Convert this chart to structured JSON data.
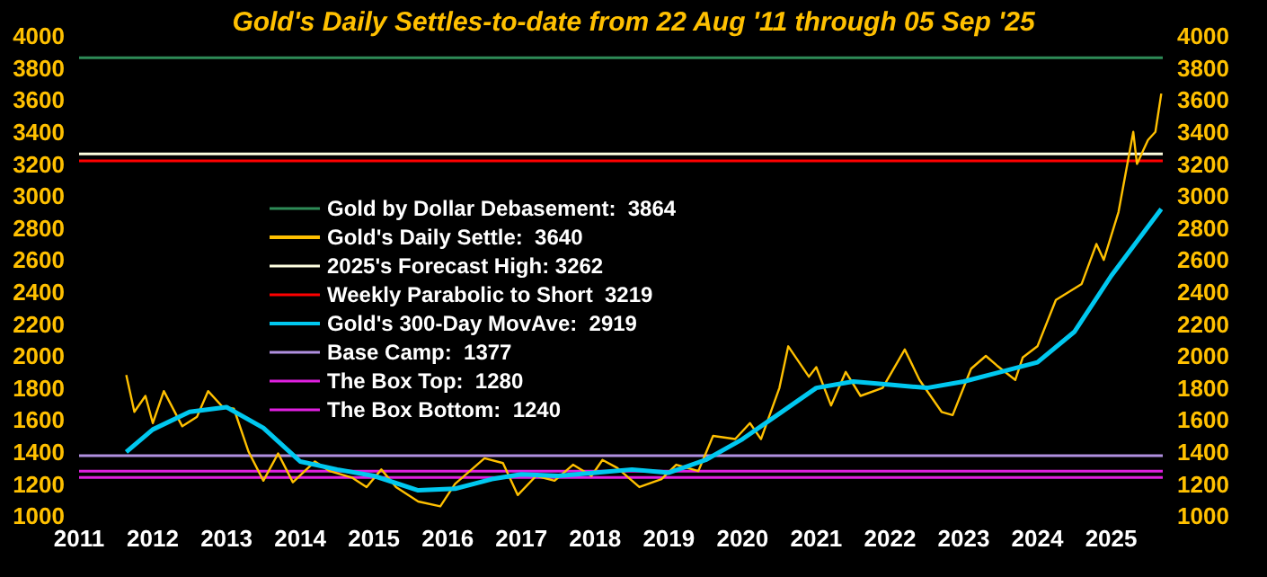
{
  "chart_data": {
    "type": "line",
    "title": "Gold's Daily Settles-to-date from 22 Aug '11 through 05 Sep '25",
    "xlim": [
      2011,
      2025.7
    ],
    "xticks": [
      2011,
      2012,
      2013,
      2014,
      2015,
      2016,
      2017,
      2018,
      2019,
      2020,
      2021,
      2022,
      2023,
      2024,
      2025
    ],
    "ylim": [
      1000,
      4000
    ],
    "yticks": [
      1000,
      1200,
      1400,
      1600,
      1800,
      2000,
      2200,
      2400,
      2600,
      2800,
      3000,
      3200,
      3400,
      3600,
      3800,
      4000
    ],
    "y2lim": [
      1000,
      4000
    ],
    "y2ticks": [
      1000,
      1200,
      1400,
      1600,
      1800,
      2000,
      2200,
      2400,
      2600,
      2800,
      3000,
      3200,
      3400,
      3600,
      3800,
      4000
    ],
    "legend": "left",
    "series": [
      {
        "name": "Gold's Daily Settle:  3640",
        "color": "#ffc000",
        "x": [
          2011.64,
          2011.75,
          2011.9,
          2012.0,
          2012.15,
          2012.4,
          2012.6,
          2012.75,
          2012.95,
          2013.1,
          2013.3,
          2013.5,
          2013.7,
          2013.9,
          2014.2,
          2014.4,
          2014.7,
          2014.9,
          2015.1,
          2015.3,
          2015.6,
          2015.9,
          2016.1,
          2016.5,
          2016.75,
          2016.95,
          2017.2,
          2017.45,
          2017.7,
          2017.95,
          2018.1,
          2018.3,
          2018.6,
          2018.9,
          2019.1,
          2019.4,
          2019.6,
          2019.9,
          2020.1,
          2020.25,
          2020.5,
          2020.62,
          2020.9,
          2021.0,
          2021.2,
          2021.4,
          2021.6,
          2021.9,
          2022.2,
          2022.4,
          2022.7,
          2022.85,
          2023.1,
          2023.3,
          2023.45,
          2023.7,
          2023.8,
          2024.0,
          2024.25,
          2024.6,
          2024.8,
          2024.9,
          2025.1,
          2025.3,
          2025.35,
          2025.5,
          2025.6,
          2025.68
        ],
        "values": [
          1880,
          1650,
          1750,
          1580,
          1780,
          1560,
          1620,
          1780,
          1680,
          1670,
          1400,
          1220,
          1390,
          1210,
          1340,
          1280,
          1240,
          1180,
          1290,
          1180,
          1090,
          1060,
          1200,
          1360,
          1330,
          1130,
          1250,
          1220,
          1320,
          1250,
          1350,
          1300,
          1180,
          1230,
          1320,
          1280,
          1500,
          1480,
          1580,
          1480,
          1800,
          2060,
          1870,
          1930,
          1690,
          1900,
          1750,
          1800,
          2040,
          1850,
          1650,
          1630,
          1920,
          2000,
          1940,
          1850,
          1990,
          2060,
          2350,
          2450,
          2700,
          2600,
          2900,
          3400,
          3200,
          3350,
          3400,
          3640
        ]
      },
      {
        "name": "Gold's 300-Day MovAve:  2919",
        "color": "#00c8f0",
        "x": [
          2011.64,
          2012.0,
          2012.5,
          2013.0,
          2013.5,
          2014.0,
          2014.5,
          2015.0,
          2015.6,
          2016.1,
          2016.6,
          2017.0,
          2017.5,
          2018.0,
          2018.5,
          2019.0,
          2019.5,
          2020.0,
          2020.5,
          2021.0,
          2021.5,
          2022.0,
          2022.5,
          2023.0,
          2023.5,
          2024.0,
          2024.5,
          2025.0,
          2025.68
        ],
        "values": [
          1400,
          1540,
          1650,
          1680,
          1550,
          1340,
          1290,
          1250,
          1160,
          1170,
          1230,
          1260,
          1250,
          1270,
          1290,
          1270,
          1350,
          1480,
          1640,
          1800,
          1840,
          1820,
          1800,
          1840,
          1900,
          1960,
          2150,
          2500,
          2919
        ]
      }
    ],
    "ref_lines": [
      {
        "axis": "y",
        "value": 3864,
        "label": "Gold by Dollar Debasement:  3864",
        "color": "#2e8b57"
      },
      {
        "axis": "y",
        "value": 3262,
        "label": "2025's Forecast High: 3262",
        "color": "#ffffe0"
      },
      {
        "axis": "y",
        "value": 3219,
        "label": "Weekly Parabolic to Short  3219",
        "color": "#ff0000"
      },
      {
        "axis": "y",
        "value": 1377,
        "label": "Base Camp:  1377",
        "color": "#b090e0"
      },
      {
        "axis": "y",
        "value": 1280,
        "label": "The Box Top:  1280",
        "color": "#e020e0"
      },
      {
        "axis": "y",
        "value": 1240,
        "label": "The Box Bottom:  1240",
        "color": "#e020e0"
      }
    ]
  }
}
